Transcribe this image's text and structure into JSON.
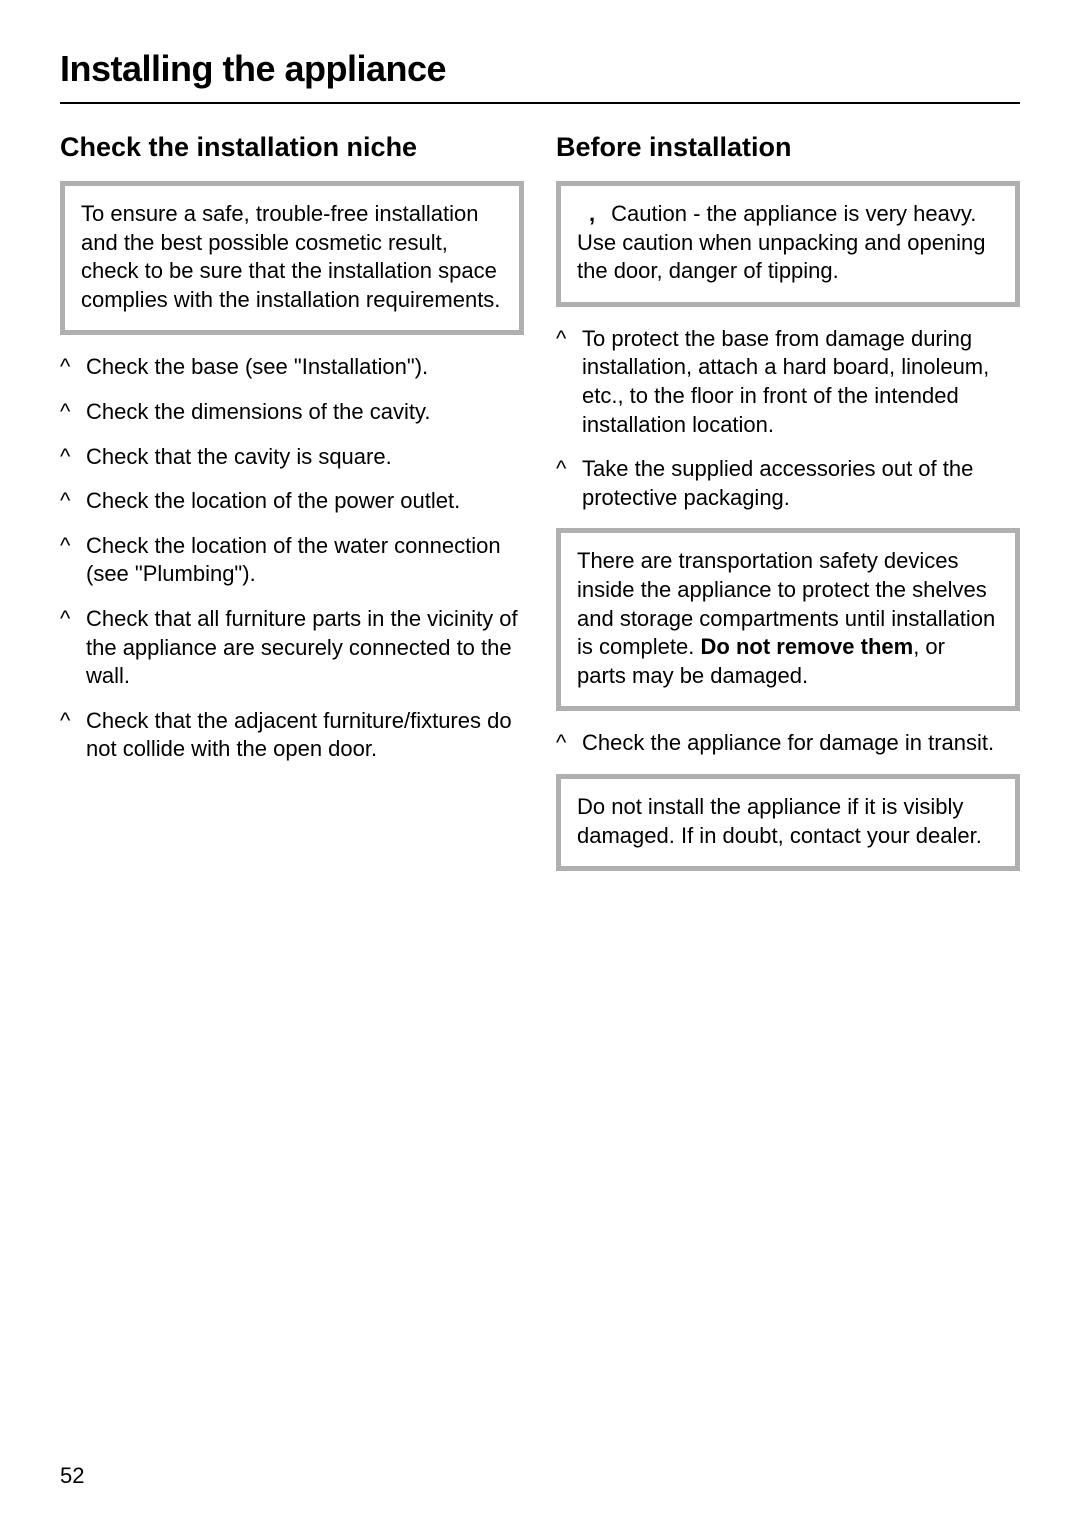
{
  "title": "Installing the appliance",
  "page_number": "52",
  "colors": {
    "box_border": "#b0b0b0",
    "rule": "#000000",
    "text": "#000000",
    "background": "#ffffff"
  },
  "typography": {
    "title_fontsize": 36,
    "heading_fontsize": 27,
    "body_fontsize": 22,
    "title_weight": "bold",
    "heading_weight": "bold"
  },
  "left": {
    "heading": "Check the installation niche",
    "box": "To ensure a safe, trouble-free installation and the best possible cosmetic result, check to be sure that the installation space complies with the installation requirements.",
    "items": [
      "Check the base (see \"Installation\").",
      "Check the dimensions of the cavity.",
      "Check that the cavity is square.",
      "Check the location of the power outlet.",
      "Check the location of the water connection (see \"Plumbing\").",
      "Check that all furniture parts in the vicinity of the appliance are securely connected to the wall.",
      "Check that the adjacent furniture/fixtures do not collide with the open door."
    ]
  },
  "right": {
    "heading": "Before installation",
    "warn_icon": ",",
    "box1": "Caution - the appliance is very heavy. Use caution when unpacking and opening the door, danger of tipping.",
    "items_a": [
      "To protect the base from damage during installation, attach a hard board, linoleum, etc., to the floor in front of the intended installation location.",
      "Take the supplied accessories out of the protective packaging."
    ],
    "box2_pre": "There are transportation safety devices inside the appliance to protect the shelves and storage compartments until installation is complete. ",
    "box2_bold": "Do not remove them",
    "box2_post": ", or parts may be damaged.",
    "items_b": [
      "Check the appliance for damage in transit."
    ],
    "box3": "Do not install the appliance if it is visibly damaged. If in doubt, contact your dealer."
  }
}
